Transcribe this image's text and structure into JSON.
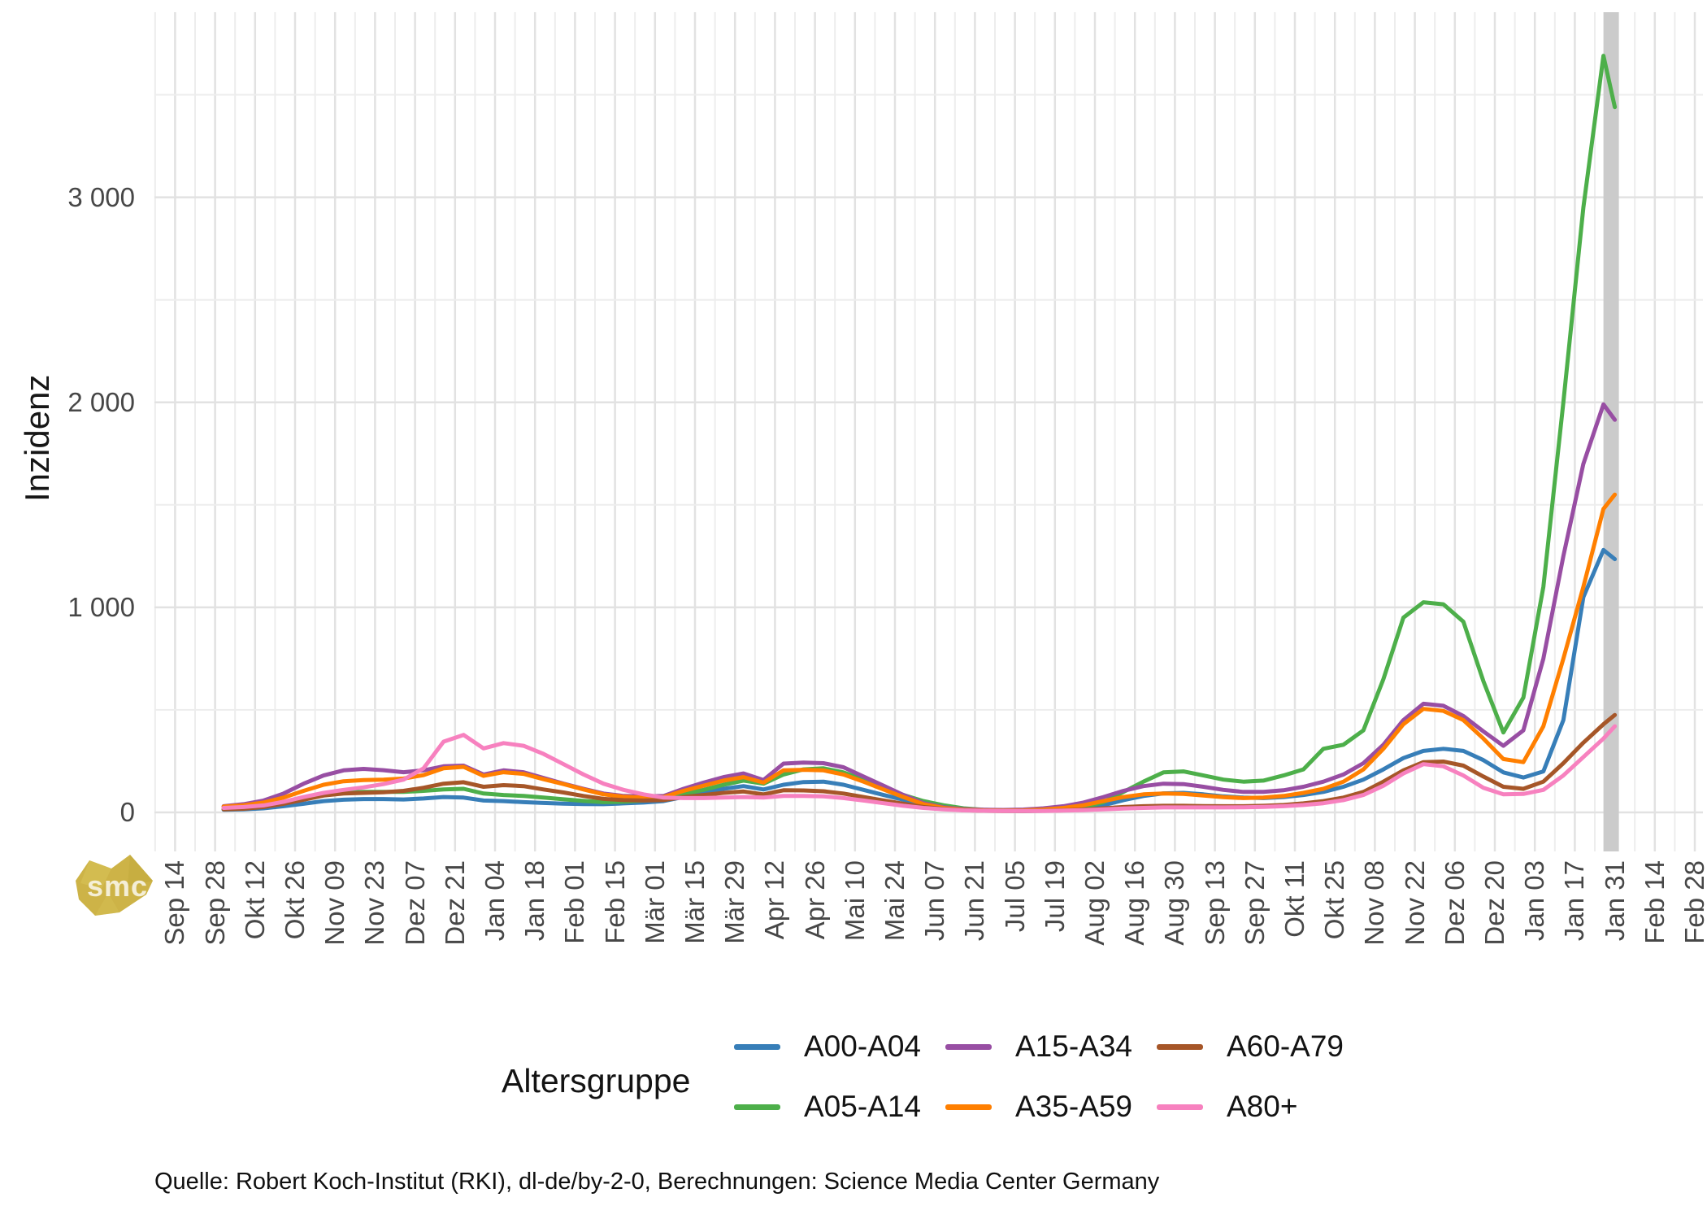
{
  "chart_data": {
    "type": "line",
    "title": "",
    "xlabel": "",
    "ylabel": "Inzidenz",
    "legend_title": "Altersgruppe",
    "grid": {
      "background": "#FFFFFF",
      "major_color": "#E2E2E2",
      "minor_color": "#EDEDED"
    },
    "ylim": [
      -186,
      3893
    ],
    "y_ticks": [
      {
        "value": 0,
        "label": "0"
      },
      {
        "value": 1000,
        "label": "1 000"
      },
      {
        "value": 2000,
        "label": "2 000"
      },
      {
        "value": 3000,
        "label": "3 000"
      }
    ],
    "y_minor_ticks": [
      500,
      1500,
      2500,
      3500
    ],
    "x_tick_spacing_days": 14,
    "x_tick_labels": [
      "Sep 14",
      "Sep 28",
      "Okt 12",
      "Okt 26",
      "Nov 09",
      "Nov 23",
      "Dez 07",
      "Dez 21",
      "Jan 04",
      "Jan 18",
      "Feb 01",
      "Feb 15",
      "Mär 01",
      "Mär 15",
      "Mär 29",
      "Apr 12",
      "Apr 26",
      "Mai 10",
      "Mai 24",
      "Jun 07",
      "Jun 21",
      "Jul 05",
      "Jul 19",
      "Aug 02",
      "Aug 16",
      "Aug 30",
      "Sep 13",
      "Sep 27",
      "Okt 11",
      "Okt 25",
      "Nov 08",
      "Nov 22",
      "Dez 06",
      "Dez 20",
      "Jan 03",
      "Jan 17",
      "Jan 31",
      "Feb 14",
      "Feb 28"
    ],
    "sample_days_since_start": [
      17,
      24,
      31,
      38,
      45,
      52,
      59,
      66,
      73,
      80,
      87,
      94,
      101,
      108,
      115,
      122,
      129,
      136,
      143,
      150,
      157,
      164,
      171,
      178,
      185,
      192,
      199,
      206,
      213,
      220,
      227,
      234,
      241,
      248,
      255,
      262,
      269,
      276,
      283,
      290,
      297,
      304,
      311,
      318,
      325,
      332,
      339,
      346,
      353,
      360,
      367,
      374,
      381,
      388,
      395,
      402,
      409,
      416,
      423,
      430,
      437,
      444,
      451,
      458,
      465,
      472,
      479,
      486,
      493,
      500,
      504
    ],
    "highlight_band": {
      "t_start": 500,
      "t_end": 505.4,
      "color": "#CBCBCB"
    },
    "series": [
      {
        "name": "A00-A04",
        "color": "#377EB8",
        "values": [
          13,
          15,
          20,
          30,
          42,
          55,
          62,
          65,
          65,
          63,
          68,
          75,
          72,
          58,
          55,
          50,
          46,
          43,
          41,
          40,
          44,
          48,
          55,
          75,
          95,
          115,
          128,
          112,
          135,
          148,
          150,
          135,
          110,
          85,
          62,
          40,
          25,
          15,
          10,
          8,
          7,
          8,
          12,
          20,
          35,
          60,
          80,
          93,
          95,
          88,
          78,
          72,
          70,
          75,
          85,
          100,
          125,
          160,
          210,
          265,
          300,
          310,
          300,
          255,
          195,
          170,
          200,
          450,
          1050,
          1280,
          1235
        ]
      },
      {
        "name": "A05-A14",
        "color": "#4DAF4A",
        "values": [
          16,
          20,
          28,
          45,
          68,
          88,
          98,
          100,
          100,
          100,
          105,
          112,
          115,
          92,
          85,
          80,
          72,
          64,
          56,
          50,
          52,
          58,
          66,
          90,
          110,
          135,
          155,
          140,
          185,
          210,
          215,
          195,
          160,
          120,
          85,
          55,
          35,
          20,
          13,
          10,
          9,
          10,
          14,
          25,
          50,
          100,
          150,
          195,
          200,
          180,
          160,
          150,
          155,
          180,
          210,
          310,
          330,
          400,
          650,
          950,
          1025,
          1015,
          930,
          640,
          390,
          560,
          1100,
          2000,
          2950,
          3690,
          3440
        ]
      },
      {
        "name": "A15-A34",
        "color": "#984EA3",
        "values": [
          30,
          40,
          58,
          92,
          140,
          180,
          205,
          212,
          206,
          196,
          205,
          225,
          228,
          185,
          205,
          196,
          168,
          140,
          115,
          92,
          80,
          78,
          80,
          115,
          145,
          172,
          190,
          158,
          238,
          243,
          240,
          220,
          175,
          130,
          85,
          45,
          25,
          16,
          13,
          12,
          14,
          20,
          30,
          48,
          75,
          105,
          128,
          140,
          138,
          125,
          110,
          100,
          100,
          108,
          125,
          150,
          185,
          240,
          330,
          450,
          530,
          520,
          470,
          395,
          325,
          400,
          750,
          1250,
          1700,
          1990,
          1915
        ]
      },
      {
        "name": "A35-A59",
        "color": "#FF7F00",
        "values": [
          28,
          35,
          48,
          72,
          105,
          135,
          152,
          158,
          160,
          165,
          182,
          215,
          222,
          178,
          196,
          188,
          162,
          138,
          112,
          88,
          76,
          72,
          75,
          105,
          130,
          155,
          172,
          145,
          205,
          208,
          205,
          185,
          150,
          112,
          75,
          40,
          22,
          13,
          10,
          9,
          10,
          14,
          22,
          35,
          55,
          75,
          88,
          92,
          90,
          82,
          74,
          70,
          72,
          80,
          95,
          115,
          150,
          210,
          310,
          430,
          505,
          495,
          450,
          360,
          260,
          245,
          420,
          750,
          1100,
          1480,
          1550
        ]
      },
      {
        "name": "A60-A79",
        "color": "#A65628",
        "values": [
          15,
          18,
          26,
          42,
          62,
          82,
          92,
          95,
          98,
          105,
          120,
          140,
          147,
          125,
          133,
          128,
          112,
          97,
          80,
          66,
          60,
          58,
          60,
          75,
          85,
          95,
          102,
          88,
          108,
          107,
          103,
          92,
          75,
          58,
          42,
          26,
          17,
          11,
          8,
          7,
          7,
          8,
          10,
          14,
          20,
          26,
          30,
          32,
          32,
          31,
          30,
          30,
          32,
          36,
          44,
          55,
          72,
          100,
          150,
          205,
          245,
          248,
          228,
          175,
          125,
          115,
          150,
          240,
          340,
          430,
          475
        ]
      },
      {
        "name": "A80+",
        "color": "#F781BF",
        "values": [
          22,
          26,
          34,
          52,
          75,
          95,
          110,
          122,
          138,
          160,
          215,
          345,
          378,
          312,
          338,
          325,
          285,
          235,
          185,
          140,
          110,
          88,
          72,
          70,
          70,
          72,
          75,
          72,
          80,
          80,
          78,
          70,
          58,
          45,
          32,
          22,
          15,
          10,
          8,
          7,
          7,
          7,
          9,
          11,
          15,
          19,
          22,
          24,
          24,
          24,
          24,
          25,
          27,
          30,
          36,
          45,
          60,
          85,
          130,
          190,
          235,
          225,
          180,
          120,
          88,
          90,
          110,
          180,
          270,
          360,
          420
        ]
      }
    ]
  },
  "watermark": {
    "text": "smc",
    "color": "#CDB347"
  },
  "caption": {
    "text": "Quelle: Robert Koch-Institut (RKI), dl-de/by-2-0, Berechnungen: Science Media Center Germany"
  }
}
